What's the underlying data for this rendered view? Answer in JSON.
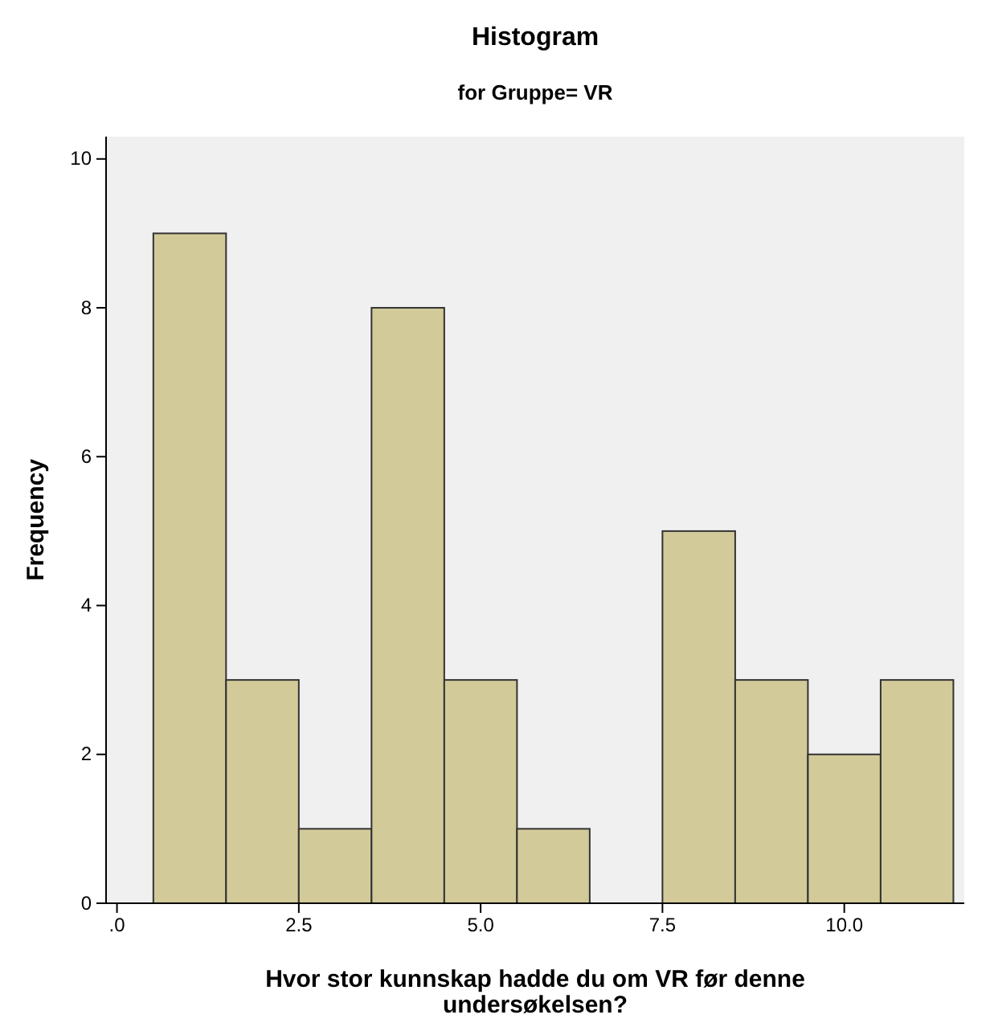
{
  "chart_data": {
    "type": "histogram",
    "title": "Histogram",
    "subtitle": "for Gruppe= VR",
    "xlabel": "Hvor stor kunnskap hadde du om VR før denne undersøkelsen?",
    "ylabel": "Frequency",
    "bins": [
      0.5,
      1.5,
      2.5,
      3.5,
      4.5,
      5.5,
      6.5,
      7.5,
      8.5,
      9.5,
      10.5,
      11.5
    ],
    "values": [
      9,
      3,
      1,
      8,
      3,
      1,
      0,
      5,
      3,
      2,
      3
    ],
    "color": "#d3ca9a",
    "xlim": [
      -0.15,
      11.65
    ],
    "ylim": [
      0,
      10.3
    ],
    "xticks": [
      {
        "value": 0,
        "label": ".0"
      },
      2.5,
      {
        "value": 5,
        "label": "5.0"
      },
      7.5,
      {
        "value": 10,
        "label": "10.0"
      }
    ],
    "yticks": [
      0,
      2,
      4,
      6,
      8,
      10
    ]
  }
}
